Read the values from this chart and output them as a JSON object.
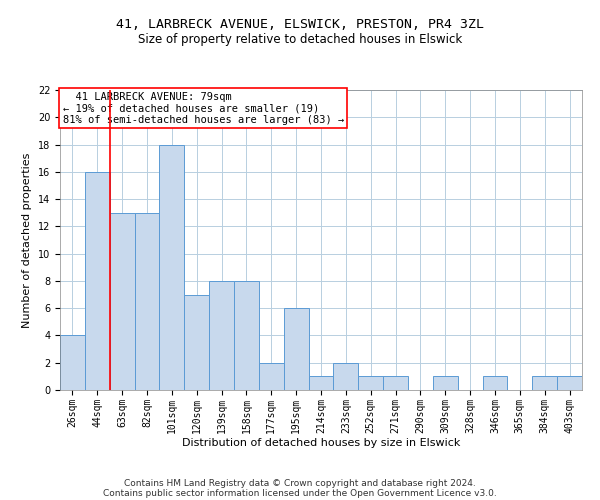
{
  "title_line1": "41, LARBRECK AVENUE, ELSWICK, PRESTON, PR4 3ZL",
  "title_line2": "Size of property relative to detached houses in Elswick",
  "xlabel": "Distribution of detached houses by size in Elswick",
  "ylabel": "Number of detached properties",
  "categories": [
    "26sqm",
    "44sqm",
    "63sqm",
    "82sqm",
    "101sqm",
    "120sqm",
    "139sqm",
    "158sqm",
    "177sqm",
    "195sqm",
    "214sqm",
    "233sqm",
    "252sqm",
    "271sqm",
    "290sqm",
    "309sqm",
    "328sqm",
    "346sqm",
    "365sqm",
    "384sqm",
    "403sqm"
  ],
  "values": [
    4,
    16,
    13,
    13,
    18,
    7,
    8,
    8,
    2,
    6,
    1,
    2,
    1,
    1,
    0,
    1,
    0,
    1,
    0,
    1,
    1
  ],
  "bar_color": "#c8d9ed",
  "bar_edge_color": "#5b9bd5",
  "annotation_line1": "  41 LARBRECK AVENUE: 79sqm  ",
  "annotation_line2": "← 19% of detached houses are smaller (19)",
  "annotation_line3": "81% of semi-detached houses are larger (83) →",
  "annotation_box_color": "white",
  "annotation_box_edge_color": "red",
  "redline_x": 1.5,
  "ylim": [
    0,
    22
  ],
  "yticks": [
    0,
    2,
    4,
    6,
    8,
    10,
    12,
    14,
    16,
    18,
    20,
    22
  ],
  "grid_color": "#b8cfe0",
  "footer_line1": "Contains HM Land Registry data © Crown copyright and database right 2024.",
  "footer_line2": "Contains public sector information licensed under the Open Government Licence v3.0.",
  "title_fontsize": 9.5,
  "subtitle_fontsize": 8.5,
  "xlabel_fontsize": 8,
  "ylabel_fontsize": 8,
  "tick_fontsize": 7,
  "footer_fontsize": 6.5,
  "annotation_fontsize": 7.5
}
